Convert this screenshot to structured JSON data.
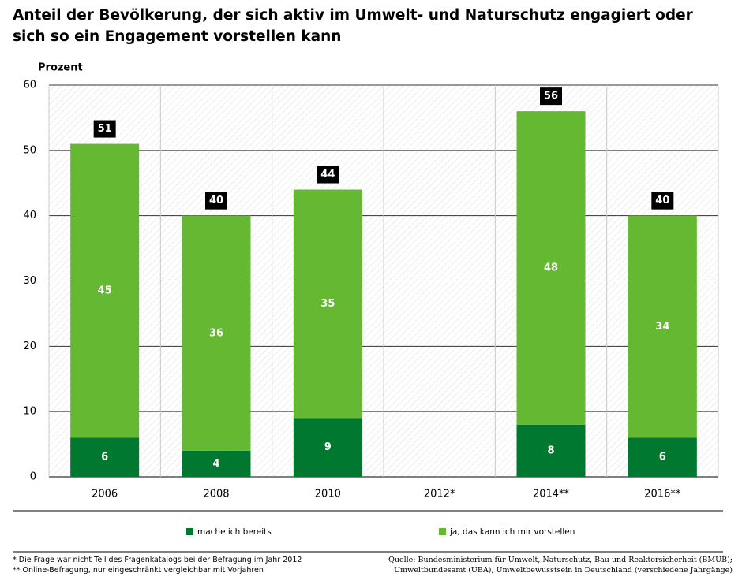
{
  "chart_data": {
    "type": "stacked_bar",
    "title": "Anteil der Bevölkerung, der sich aktiv im Umwelt- und Naturschutz engagiert oder sich so ein Engagement vorstellen kann",
    "y_label": "Prozent",
    "categories": [
      "2006",
      "2008",
      "2010",
      "2012*",
      "2014**",
      "2016**"
    ],
    "series": [
      {
        "name": "mache ich bereits",
        "color": "#00782f",
        "values": [
          6,
          4,
          9,
          null,
          8,
          6
        ]
      },
      {
        "name": "ja, das kann ich mir vorstellen",
        "color": "#64b832",
        "values": [
          45,
          36,
          35,
          null,
          48,
          34
        ]
      }
    ],
    "totals": [
      51,
      40,
      44,
      null,
      56,
      40
    ],
    "ylim": [
      0,
      60
    ],
    "yticks": [
      0,
      10,
      20,
      30,
      40,
      50,
      60
    ],
    "grid": true,
    "footnotes": [
      "* Die Frage war nicht Teil des Fragenkatalogs bei der Befragung im Jahr 2012",
      "** Online-Befragung, nur eingeschränkt vergleichbar mit Vorjahren"
    ],
    "source": [
      "Quelle: Bundesministerium für Umwelt, Naturschutz, Bau und Reaktorsicherheit (BMUB);",
      "Umweltbundesamt (UBA), Umweltbewusstsein in Deutschland (verschiedene Jahrgänge)"
    ]
  }
}
